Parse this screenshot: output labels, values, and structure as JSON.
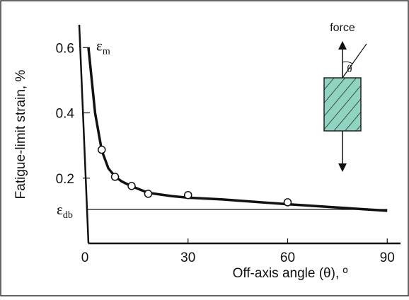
{
  "chart_data": {
    "type": "line",
    "y_label": "Fatigue-limit strain, %",
    "x_label": "Off-axis angle (θ), º",
    "xlim": [
      0,
      94
    ],
    "ylim": [
      0,
      0.67
    ],
    "xticks": [
      0,
      30,
      60,
      90
    ],
    "yticks": [
      0.2,
      0.4,
      0.6
    ],
    "color": "#111111",
    "curve": {
      "x": [
        0,
        2,
        4,
        6,
        8,
        10,
        13,
        18,
        25,
        30,
        40,
        60,
        75,
        90
      ],
      "values": [
        0.6,
        0.4,
        0.285,
        0.23,
        0.205,
        0.19,
        0.175,
        0.155,
        0.145,
        0.14,
        0.135,
        0.12,
        0.11,
        0.1
      ]
    },
    "points": {
      "x": [
        4,
        8,
        13,
        18,
        30,
        60
      ],
      "values": [
        0.287,
        0.204,
        0.176,
        0.152,
        0.148,
        0.126
      ]
    },
    "max_label": {
      "symbol": "ε",
      "sub": "m"
    },
    "reference_line": {
      "value": 0.104,
      "symbol": "ε",
      "sub": "db"
    },
    "inset": {
      "force": "force",
      "angle": "θ"
    }
  }
}
